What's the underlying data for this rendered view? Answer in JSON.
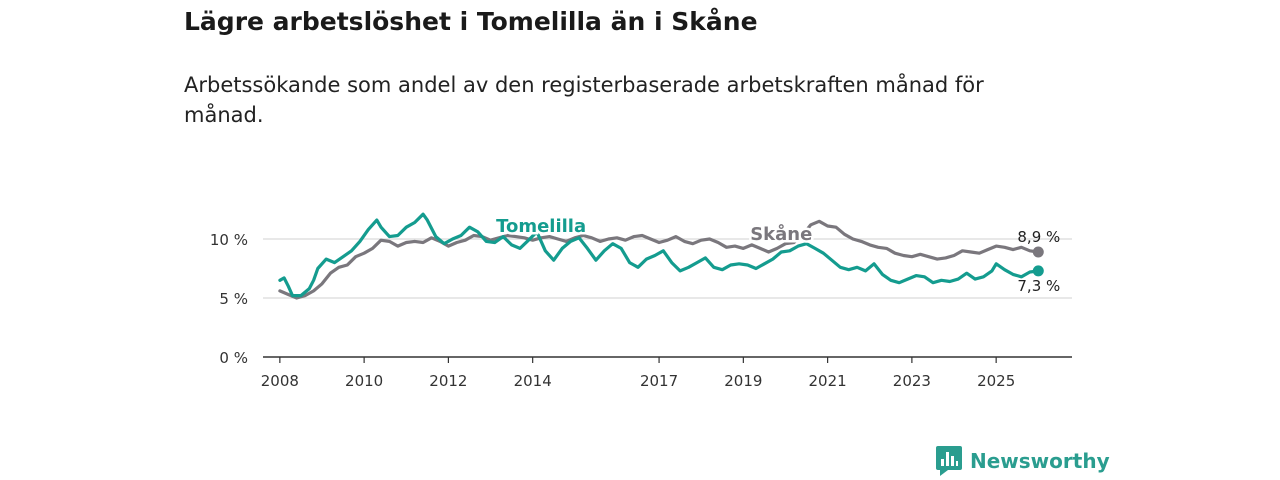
{
  "title": "Lägre arbetslöshet i Tomelilla än i Skåne",
  "subtitle": "Arbetssökande som andel av den registerbaserade arbetskraften månad för månad.",
  "brand": {
    "name": "Newsworthy"
  },
  "chart_data": {
    "type": "line",
    "x_unit": "year (decimal)",
    "xlim": [
      2007.6,
      2026.8
    ],
    "ylim": [
      0,
      15
    ],
    "y_ticks": [
      {
        "value": 0,
        "label": "0 %"
      },
      {
        "value": 5,
        "label": "5 %"
      },
      {
        "value": 10,
        "label": "10 %"
      }
    ],
    "x_ticks": [
      {
        "value": 2008,
        "label": "2008"
      },
      {
        "value": 2010,
        "label": "2010"
      },
      {
        "value": 2012,
        "label": "2012"
      },
      {
        "value": 2014,
        "label": "2014"
      },
      {
        "value": 2017,
        "label": "2017"
      },
      {
        "value": 2019,
        "label": "2019"
      },
      {
        "value": 2021,
        "label": "2021"
      },
      {
        "value": 2023,
        "label": "2023"
      },
      {
        "value": 2025,
        "label": "2025"
      }
    ],
    "grid": true,
    "series": [
      {
        "name": "Skåne",
        "color": "#7a777d",
        "end_label": "8,9 %",
        "points": [
          [
            2008.0,
            5.6
          ],
          [
            2008.2,
            5.3
          ],
          [
            2008.4,
            5.0
          ],
          [
            2008.6,
            5.2
          ],
          [
            2008.8,
            5.6
          ],
          [
            2009.0,
            6.2
          ],
          [
            2009.2,
            7.1
          ],
          [
            2009.4,
            7.6
          ],
          [
            2009.6,
            7.8
          ],
          [
            2009.8,
            8.5
          ],
          [
            2010.0,
            8.8
          ],
          [
            2010.2,
            9.2
          ],
          [
            2010.4,
            9.9
          ],
          [
            2010.6,
            9.8
          ],
          [
            2010.8,
            9.4
          ],
          [
            2011.0,
            9.7
          ],
          [
            2011.2,
            9.8
          ],
          [
            2011.4,
            9.7
          ],
          [
            2011.6,
            10.1
          ],
          [
            2011.8,
            9.8
          ],
          [
            2012.0,
            9.4
          ],
          [
            2012.2,
            9.7
          ],
          [
            2012.4,
            9.9
          ],
          [
            2012.6,
            10.3
          ],
          [
            2012.8,
            10.2
          ],
          [
            2013.0,
            9.9
          ],
          [
            2013.2,
            10.1
          ],
          [
            2013.4,
            10.3
          ],
          [
            2013.6,
            10.2
          ],
          [
            2013.8,
            10.1
          ],
          [
            2014.0,
            9.9
          ],
          [
            2014.2,
            10.1
          ],
          [
            2014.4,
            10.2
          ],
          [
            2014.6,
            10.0
          ],
          [
            2014.8,
            9.8
          ],
          [
            2015.0,
            10.1
          ],
          [
            2015.2,
            10.3
          ],
          [
            2015.4,
            10.1
          ],
          [
            2015.6,
            9.8
          ],
          [
            2015.8,
            10.0
          ],
          [
            2016.0,
            10.1
          ],
          [
            2016.2,
            9.9
          ],
          [
            2016.4,
            10.2
          ],
          [
            2016.6,
            10.3
          ],
          [
            2016.8,
            10.0
          ],
          [
            2017.0,
            9.7
          ],
          [
            2017.2,
            9.9
          ],
          [
            2017.4,
            10.2
          ],
          [
            2017.6,
            9.8
          ],
          [
            2017.8,
            9.6
          ],
          [
            2018.0,
            9.9
          ],
          [
            2018.2,
            10.0
          ],
          [
            2018.4,
            9.7
          ],
          [
            2018.6,
            9.3
          ],
          [
            2018.8,
            9.4
          ],
          [
            2019.0,
            9.2
          ],
          [
            2019.2,
            9.5
          ],
          [
            2019.4,
            9.2
          ],
          [
            2019.6,
            8.9
          ],
          [
            2019.8,
            9.2
          ],
          [
            2020.0,
            9.6
          ],
          [
            2020.2,
            9.7
          ],
          [
            2020.4,
            10.3
          ],
          [
            2020.6,
            11.2
          ],
          [
            2020.8,
            11.5
          ],
          [
            2021.0,
            11.1
          ],
          [
            2021.2,
            11.0
          ],
          [
            2021.4,
            10.4
          ],
          [
            2021.6,
            10.0
          ],
          [
            2021.8,
            9.8
          ],
          [
            2022.0,
            9.5
          ],
          [
            2022.2,
            9.3
          ],
          [
            2022.4,
            9.2
          ],
          [
            2022.6,
            8.8
          ],
          [
            2022.8,
            8.6
          ],
          [
            2023.0,
            8.5
          ],
          [
            2023.2,
            8.7
          ],
          [
            2023.4,
            8.5
          ],
          [
            2023.6,
            8.3
          ],
          [
            2023.8,
            8.4
          ],
          [
            2024.0,
            8.6
          ],
          [
            2024.2,
            9.0
          ],
          [
            2024.4,
            8.9
          ],
          [
            2024.6,
            8.8
          ],
          [
            2024.8,
            9.1
          ],
          [
            2025.0,
            9.4
          ],
          [
            2025.2,
            9.3
          ],
          [
            2025.4,
            9.1
          ],
          [
            2025.6,
            9.3
          ],
          [
            2025.8,
            9.0
          ],
          [
            2026.0,
            8.9
          ]
        ]
      },
      {
        "name": "Tomelilla",
        "color": "#149c8f",
        "end_label": "7,3 %",
        "points": [
          [
            2008.0,
            6.5
          ],
          [
            2008.1,
            6.7
          ],
          [
            2008.2,
            6.0
          ],
          [
            2008.3,
            5.2
          ],
          [
            2008.5,
            5.2
          ],
          [
            2008.7,
            5.8
          ],
          [
            2008.8,
            6.5
          ],
          [
            2008.9,
            7.5
          ],
          [
            2009.1,
            8.3
          ],
          [
            2009.3,
            8.0
          ],
          [
            2009.5,
            8.5
          ],
          [
            2009.7,
            9.0
          ],
          [
            2009.9,
            9.8
          ],
          [
            2010.1,
            10.8
          ],
          [
            2010.3,
            11.6
          ],
          [
            2010.4,
            11.0
          ],
          [
            2010.6,
            10.2
          ],
          [
            2010.8,
            10.3
          ],
          [
            2011.0,
            11.0
          ],
          [
            2011.2,
            11.4
          ],
          [
            2011.4,
            12.1
          ],
          [
            2011.5,
            11.6
          ],
          [
            2011.7,
            10.2
          ],
          [
            2011.9,
            9.6
          ],
          [
            2012.1,
            10.0
          ],
          [
            2012.3,
            10.3
          ],
          [
            2012.5,
            11.0
          ],
          [
            2012.7,
            10.6
          ],
          [
            2012.9,
            9.8
          ],
          [
            2013.1,
            9.7
          ],
          [
            2013.3,
            10.2
          ],
          [
            2013.5,
            9.5
          ],
          [
            2013.7,
            9.2
          ],
          [
            2013.9,
            9.9
          ],
          [
            2014.1,
            10.6
          ],
          [
            2014.3,
            9.0
          ],
          [
            2014.5,
            8.2
          ],
          [
            2014.7,
            9.2
          ],
          [
            2014.9,
            9.8
          ],
          [
            2015.1,
            10.1
          ],
          [
            2015.3,
            9.2
          ],
          [
            2015.5,
            8.2
          ],
          [
            2015.7,
            9.0
          ],
          [
            2015.9,
            9.6
          ],
          [
            2016.1,
            9.2
          ],
          [
            2016.3,
            8.0
          ],
          [
            2016.5,
            7.6
          ],
          [
            2016.7,
            8.3
          ],
          [
            2016.9,
            8.6
          ],
          [
            2017.1,
            9.0
          ],
          [
            2017.3,
            8.0
          ],
          [
            2017.5,
            7.3
          ],
          [
            2017.7,
            7.6
          ],
          [
            2017.9,
            8.0
          ],
          [
            2018.1,
            8.4
          ],
          [
            2018.3,
            7.6
          ],
          [
            2018.5,
            7.4
          ],
          [
            2018.7,
            7.8
          ],
          [
            2018.9,
            7.9
          ],
          [
            2019.1,
            7.8
          ],
          [
            2019.3,
            7.5
          ],
          [
            2019.5,
            7.9
          ],
          [
            2019.7,
            8.3
          ],
          [
            2019.9,
            8.9
          ],
          [
            2020.1,
            9.0
          ],
          [
            2020.3,
            9.4
          ],
          [
            2020.5,
            9.6
          ],
          [
            2020.7,
            9.2
          ],
          [
            2020.9,
            8.8
          ],
          [
            2021.1,
            8.2
          ],
          [
            2021.3,
            7.6
          ],
          [
            2021.5,
            7.4
          ],
          [
            2021.7,
            7.6
          ],
          [
            2021.9,
            7.3
          ],
          [
            2022.1,
            7.9
          ],
          [
            2022.3,
            7.0
          ],
          [
            2022.5,
            6.5
          ],
          [
            2022.7,
            6.3
          ],
          [
            2022.9,
            6.6
          ],
          [
            2023.1,
            6.9
          ],
          [
            2023.3,
            6.8
          ],
          [
            2023.5,
            6.3
          ],
          [
            2023.7,
            6.5
          ],
          [
            2023.9,
            6.4
          ],
          [
            2024.1,
            6.6
          ],
          [
            2024.3,
            7.1
          ],
          [
            2024.5,
            6.6
          ],
          [
            2024.7,
            6.8
          ],
          [
            2024.9,
            7.3
          ],
          [
            2025.0,
            7.9
          ],
          [
            2025.2,
            7.4
          ],
          [
            2025.4,
            7.0
          ],
          [
            2025.6,
            6.8
          ],
          [
            2025.8,
            7.2
          ],
          [
            2026.0,
            7.3
          ]
        ]
      }
    ],
    "inline_labels": [
      {
        "series": "Tomelilla",
        "text": "Tomelilla",
        "x": 2014.2,
        "y": 10.6
      },
      {
        "series": "Skåne",
        "text": "Skåne",
        "x": 2019.9,
        "y": 9.9
      }
    ]
  }
}
